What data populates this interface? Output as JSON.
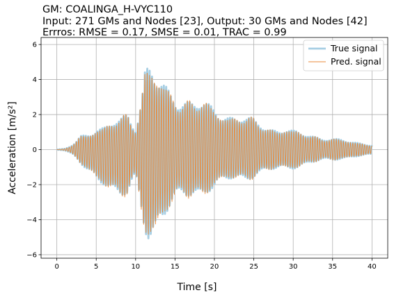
{
  "title_lines": [
    "GM: COALINGA_H-VYC110",
    "Input: 271 GMs and Nodes [23], Output: 30 GMs and Nodes [42]",
    "Errros: RMSE = 0.17, SMSE = 0.01, TRAC = 0.99"
  ],
  "chart_data": {
    "type": "line",
    "xlabel": "Time [s]",
    "ylabel": "Acceleration [m/s²]",
    "xlim": [
      -2,
      42
    ],
    "ylim": [
      -6.2,
      6.4
    ],
    "xticks": [
      0,
      5,
      10,
      15,
      20,
      25,
      30,
      35,
      40
    ],
    "yticks": [
      -6,
      -4,
      -2,
      0,
      2,
      4,
      6
    ],
    "grid": true,
    "legend_position": "top-right",
    "oscillation_period_s": 0.3,
    "envelope": {
      "t": [
        0,
        1,
        1.5,
        2,
        2.5,
        3,
        4,
        5,
        6,
        7,
        8,
        9,
        10,
        10.8,
        11.2,
        11.6,
        12,
        12.5,
        13,
        14,
        15,
        16,
        17,
        18,
        19,
        20,
        21,
        22,
        23,
        24,
        25,
        26,
        27,
        28,
        29,
        30,
        31,
        32,
        33,
        34,
        35,
        36,
        37,
        38,
        39,
        40
      ],
      "upper": [
        0.0,
        0.05,
        0.15,
        0.3,
        0.55,
        0.9,
        1.1,
        1.3,
        1.3,
        1.6,
        1.9,
        2.4,
        1.5,
        3.5,
        5.0,
        5.1,
        5.0,
        4.4,
        4.1,
        3.8,
        3.6,
        3.3,
        3.1,
        2.9,
        2.7,
        2.6,
        2.4,
        2.2,
        2.1,
        1.9,
        1.8,
        1.6,
        1.4,
        1.3,
        1.3,
        1.1,
        1.0,
        0.95,
        0.85,
        0.75,
        0.65,
        0.6,
        0.5,
        0.45,
        0.4,
        0.3
      ],
      "lower": [
        0.0,
        -0.05,
        -0.15,
        -0.3,
        -0.55,
        -0.9,
        -1.6,
        -2.0,
        -2.1,
        -2.4,
        -2.8,
        -3.0,
        -2.0,
        -4.3,
        -5.2,
        -5.6,
        -5.5,
        -5.0,
        -4.2,
        -3.8,
        -3.5,
        -3.2,
        -3.0,
        -2.8,
        -2.5,
        -2.4,
        -2.2,
        -2.0,
        -1.9,
        -1.8,
        -1.6,
        -1.5,
        -1.4,
        -1.3,
        -1.2,
        -1.1,
        -1.0,
        -0.9,
        -0.8,
        -0.7,
        -0.65,
        -0.55,
        -0.5,
        -0.45,
        -0.4,
        -0.35
      ]
    },
    "series": [
      {
        "name": "True signal",
        "color": "#a6cee3",
        "line_width": 2.8
      },
      {
        "name": "Pred. signal",
        "color": "#e8893a",
        "line_width": 0.9
      }
    ]
  }
}
